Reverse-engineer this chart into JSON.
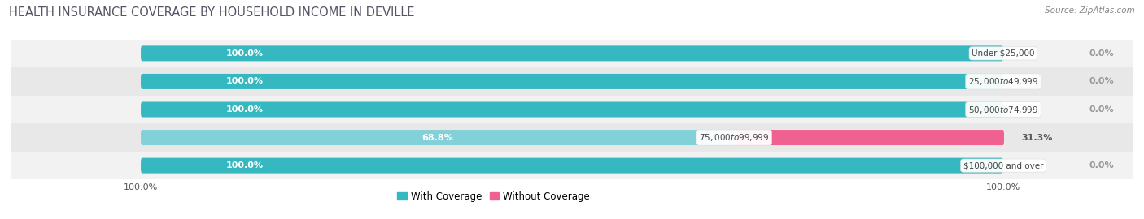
{
  "title": "HEALTH INSURANCE COVERAGE BY HOUSEHOLD INCOME IN DEVILLE",
  "source": "Source: ZipAtlas.com",
  "categories": [
    "Under $25,000",
    "$25,000 to $49,999",
    "$50,000 to $74,999",
    "$75,000 to $99,999",
    "$100,000 and over"
  ],
  "with_coverage": [
    100.0,
    100.0,
    100.0,
    68.8,
    100.0
  ],
  "without_coverage": [
    0.0,
    0.0,
    0.0,
    31.3,
    0.0
  ],
  "color_with": "#35b8c0",
  "color_without_big": "#f06090",
  "color_without_small": "#f4b8cb",
  "color_with_light": "#82d0d8",
  "row_bg_light": "#f2f2f2",
  "row_bg_dark": "#e8e8e8",
  "label_color_with": "#ffffff",
  "title_fontsize": 10.5,
  "tick_fontsize": 8,
  "bar_label_fontsize": 8,
  "cat_label_fontsize": 7.5,
  "legend_fontsize": 8.5,
  "source_fontsize": 7.5,
  "figsize": [
    14.06,
    2.7
  ],
  "dpi": 100
}
